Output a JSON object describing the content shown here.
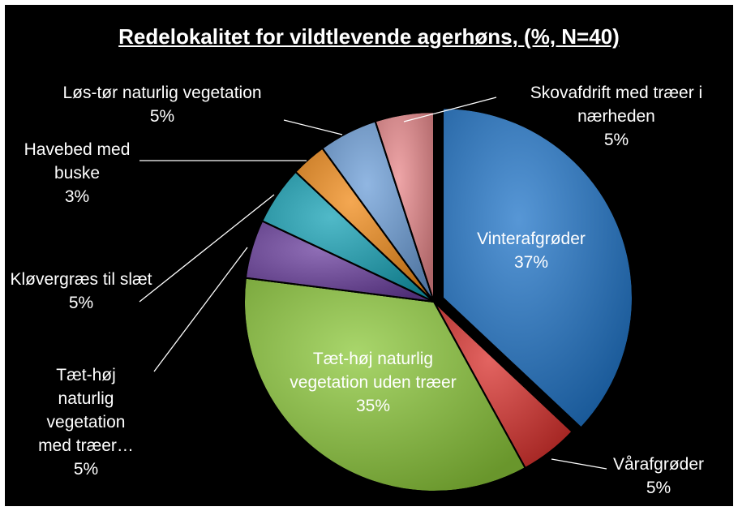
{
  "chart_data": {
    "type": "pie",
    "title": "Redelokalitet for vildtlevende agerhøns, (%, N=40)",
    "categories": [
      "Vinterafgrøder",
      "Vårafgrøder",
      "Tæt-høj naturlig vegetation uden træer",
      "Tæt-høj naturlig vegetation med træer…",
      "Kløvergræs til slæt",
      "Havebed med buske",
      "Løs-tør naturlig vegetation",
      "Skovafdrift med træer i nærheden"
    ],
    "values": [
      37,
      5,
      35,
      5,
      5,
      3,
      5,
      5
    ],
    "value_labels": [
      "37%",
      "5%",
      "35%",
      "5%",
      "5%",
      "3%",
      "5%",
      "5%"
    ],
    "colors": [
      "#1f74c8",
      "#d9302c",
      "#8cc83a",
      "#6a3e9e",
      "#16a2b6",
      "#f08a18",
      "#6c9ed8",
      "#e8878a"
    ]
  }
}
